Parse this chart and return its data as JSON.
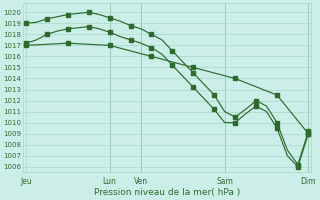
{
  "bg_color": "#cceee8",
  "grid_color": "#aaddcc",
  "line_color": "#2d6b2d",
  "xlabel": "Pression niveau de la mer( hPa )",
  "ylim": [
    1005.5,
    1020.8
  ],
  "yticks": [
    1006,
    1007,
    1008,
    1009,
    1010,
    1011,
    1012,
    1013,
    1014,
    1015,
    1016,
    1017,
    1018,
    1019,
    1020
  ],
  "xtick_labels": [
    "Jeu",
    "Lun",
    "Ven",
    "Sam",
    "Dim"
  ],
  "xtick_positions": [
    0,
    8,
    11,
    19,
    27
  ],
  "vline_positions": [
    8,
    11,
    19,
    27
  ],
  "line1_x": [
    0,
    1,
    2,
    3,
    4,
    5,
    6,
    7,
    8,
    9,
    10,
    11,
    12,
    13,
    14,
    15,
    16,
    17,
    18,
    19,
    20,
    21,
    22,
    23,
    24,
    25,
    26,
    27
  ],
  "line1_y": [
    1019.0,
    1019.1,
    1019.4,
    1019.6,
    1019.8,
    1019.9,
    1020.0,
    1019.8,
    1019.5,
    1019.2,
    1018.8,
    1018.5,
    1018.0,
    1017.5,
    1016.5,
    1015.5,
    1014.5,
    1013.5,
    1012.5,
    1011.0,
    1010.5,
    1011.2,
    1012.0,
    1011.5,
    1010.0,
    1007.5,
    1006.2,
    1009.2
  ],
  "line2_x": [
    0,
    1,
    2,
    3,
    4,
    5,
    6,
    7,
    8,
    9,
    10,
    11,
    12,
    13,
    14,
    15,
    16,
    17,
    18,
    19,
    20,
    21,
    22,
    23,
    24,
    25,
    26,
    27
  ],
  "line2_y": [
    1017.2,
    1017.5,
    1018.0,
    1018.3,
    1018.5,
    1018.6,
    1018.7,
    1018.5,
    1018.2,
    1017.8,
    1017.5,
    1017.2,
    1016.8,
    1016.2,
    1015.2,
    1014.2,
    1013.2,
    1012.2,
    1011.2,
    1010.0,
    1010.0,
    1010.8,
    1011.5,
    1011.0,
    1009.5,
    1007.0,
    1006.0,
    1009.0
  ],
  "line3_x": [
    0,
    4,
    8,
    12,
    16,
    20,
    24,
    27
  ],
  "line3_y": [
    1017.0,
    1017.2,
    1017.0,
    1016.0,
    1015.0,
    1014.0,
    1012.5,
    1009.0
  ],
  "marker1_x": [
    0,
    2,
    4,
    6,
    8,
    10,
    12,
    14,
    16,
    18,
    20,
    22,
    24,
    26,
    27
  ],
  "marker1_y": [
    1019.0,
    1019.4,
    1019.8,
    1020.0,
    1019.5,
    1018.8,
    1018.0,
    1016.5,
    1014.5,
    1012.5,
    1010.5,
    1012.0,
    1010.0,
    1006.2,
    1009.2
  ],
  "marker2_x": [
    0,
    2,
    4,
    6,
    8,
    10,
    12,
    14,
    16,
    18,
    20,
    22,
    24,
    26,
    27
  ],
  "marker2_y": [
    1017.2,
    1018.0,
    1018.5,
    1018.7,
    1018.2,
    1017.5,
    1016.8,
    1015.2,
    1013.2,
    1011.2,
    1010.0,
    1011.5,
    1009.5,
    1006.0,
    1009.0
  ],
  "marker3_x": [
    0,
    4,
    8,
    12,
    16,
    20,
    24,
    27
  ],
  "marker3_y": [
    1017.0,
    1017.2,
    1017.0,
    1016.0,
    1015.0,
    1014.0,
    1012.5,
    1009.0
  ],
  "n_points": 28
}
